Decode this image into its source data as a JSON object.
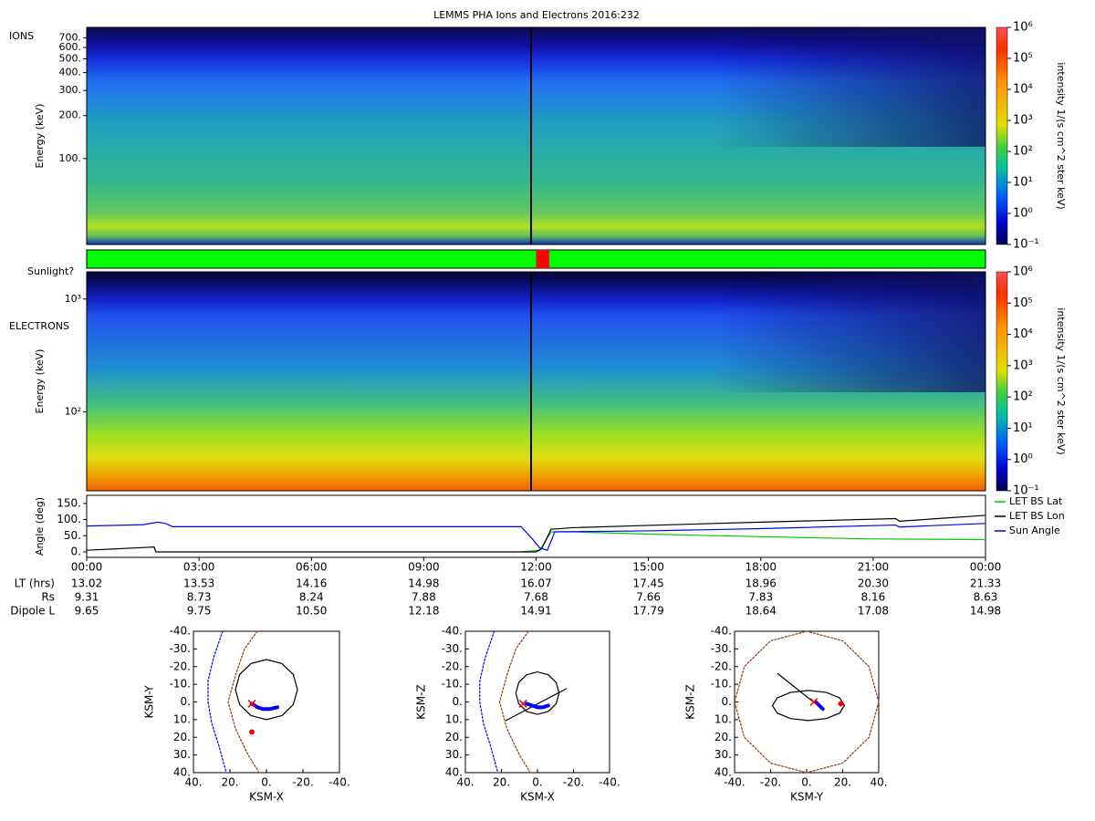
{
  "title": "LEMMS PHA Ions and Electrons  2016:232",
  "ephemeris": {
    "rows": [
      {
        "label": "LT (hrs)",
        "values": [
          "13.02",
          "13.53",
          "14.16",
          "14.98",
          "16.07",
          "17.45",
          "18.96",
          "20.30",
          "21.33"
        ]
      },
      {
        "label": "Rs",
        "values": [
          "9.31",
          "8.73",
          "8.24",
          "7.88",
          "7.68",
          "7.66",
          "7.83",
          "8.16",
          "8.63"
        ]
      },
      {
        "label": "Dipole L",
        "values": [
          "9.65",
          "9.75",
          "10.50",
          "12.18",
          "14.91",
          "17.79",
          "18.64",
          "17.08",
          "14.98"
        ]
      }
    ]
  },
  "chart_data": [
    {
      "type": "heatmap",
      "label": "IONS",
      "y_label": "Energy (keV)",
      "log_y": true,
      "ylim": [
        25,
        830
      ],
      "yticks": [
        {
          "value": 100,
          "label": "100."
        },
        {
          "value": 200,
          "label": "200."
        },
        {
          "value": 300,
          "label": "300."
        },
        {
          "value": 400,
          "label": "400."
        },
        {
          "value": 500,
          "label": "500."
        },
        {
          "value": 600,
          "label": "600."
        },
        {
          "value": 700,
          "label": "700."
        }
      ],
      "colorbar": {
        "label": "intensity 1/(s cm^2 ster keV)",
        "lim": [
          0.1,
          1000000
        ],
        "ticks": [
          {
            "value": 0.1,
            "label": "10⁻¹"
          },
          {
            "value": 1,
            "label": "10⁰"
          },
          {
            "value": 10,
            "label": "10¹"
          },
          {
            "value": 100,
            "label": "10²"
          },
          {
            "value": 1000,
            "label": "10³"
          },
          {
            "value": 10000,
            "label": "10⁴"
          },
          {
            "value": 100000,
            "label": "10⁵"
          },
          {
            "value": 1000000,
            "label": "10⁶"
          }
        ]
      }
    },
    {
      "type": "timeline",
      "title": "Sunlight?",
      "xlim": [
        0,
        24
      ],
      "color": "#00ff00",
      "shadow": [
        12.0,
        12.35
      ],
      "shadow_color": "#ff0000"
    },
    {
      "type": "heatmap",
      "label": "ELECTRONS",
      "y_label": "Energy (keV)",
      "log_y": true,
      "ylim": [
        20,
        1740
      ],
      "yticks": [
        {
          "value": 100,
          "label": "10²"
        },
        {
          "value": 1000,
          "label": "10³"
        }
      ],
      "colorbar": {
        "label": "intensity 1/(s cm^2 ster keV)",
        "lim": [
          0.1,
          1000000
        ],
        "ticks": [
          {
            "value": 0.1,
            "label": "10⁻¹"
          },
          {
            "value": 1,
            "label": "10⁰"
          },
          {
            "value": 10,
            "label": "10¹"
          },
          {
            "value": 100,
            "label": "10²"
          },
          {
            "value": 1000,
            "label": "10³"
          },
          {
            "value": 10000,
            "label": "10⁴"
          },
          {
            "value": 100000,
            "label": "10⁵"
          },
          {
            "value": 1000000,
            "label": "10⁶"
          }
        ]
      }
    },
    {
      "type": "line",
      "y_label": "Angle (deg)",
      "legend": "right",
      "xlim": [
        0,
        24
      ],
      "ylim": [
        -17,
        175
      ],
      "xticks": [
        {
          "value": 0,
          "label": "00:00"
        },
        {
          "value": 3,
          "label": "03:00"
        },
        {
          "value": 6,
          "label": "06:00"
        },
        {
          "value": 9,
          "label": "09:00"
        },
        {
          "value": 12,
          "label": "12:00"
        },
        {
          "value": 15,
          "label": "15:00"
        },
        {
          "value": 18,
          "label": "18:00"
        },
        {
          "value": 21,
          "label": "21:00"
        },
        {
          "value": 24,
          "label": "00:00"
        }
      ],
      "yticks": [
        {
          "value": 0,
          "label": "0."
        },
        {
          "value": 50,
          "label": "50."
        },
        {
          "value": 100,
          "label": "100."
        },
        {
          "value": 150,
          "label": "150."
        }
      ],
      "series": [
        {
          "name": "LET BS Lat",
          "color": "#00cc00",
          "x": [
            11.6,
            12.1,
            12.4,
            13,
            15,
            18,
            21,
            24
          ],
          "values": [
            0,
            5,
            62,
            62,
            55,
            47,
            40,
            38
          ]
        },
        {
          "name": "LET BS Lon",
          "color": "#000000",
          "x": [
            0,
            1.8,
            1.85,
            11.6,
            12.0,
            12.15,
            12.4,
            13,
            15,
            18,
            21.6,
            21.7,
            24
          ],
          "values": [
            5,
            15,
            0,
            0,
            0,
            10,
            70,
            75,
            82,
            92,
            103,
            95,
            113
          ]
        },
        {
          "name": "Sun Angle",
          "color": "#0000ff",
          "x": [
            0,
            1.5,
            1.9,
            2.1,
            2.3,
            11.6,
            11.9,
            12.1,
            12.3,
            12.5,
            15,
            18,
            21.6,
            21.7,
            24
          ],
          "values": [
            80,
            84,
            92,
            88,
            78,
            78,
            40,
            12,
            5,
            62,
            65,
            72,
            83,
            77,
            88
          ]
        }
      ]
    },
    {
      "type": "orbit",
      "x_label": "KSM-X",
      "y_label": "KSM-Y",
      "xlim": [
        40,
        -40
      ],
      "ylim": [
        40,
        -40
      ],
      "xticks": [
        {
          "value": 40,
          "label": "40."
        },
        {
          "value": 20,
          "label": "20."
        },
        {
          "value": 0,
          "label": "0."
        },
        {
          "value": -20,
          "label": "-20."
        },
        {
          "value": -40,
          "label": "-40."
        }
      ],
      "yticks": [
        {
          "value": -40,
          "label": "-40."
        },
        {
          "value": -30,
          "label": "-30."
        },
        {
          "value": -20,
          "label": "-20."
        },
        {
          "value": -10,
          "label": "-10."
        },
        {
          "value": 0,
          "label": "0."
        },
        {
          "value": 10,
          "label": "10."
        },
        {
          "value": 20,
          "label": "20."
        },
        {
          "value": 30,
          "label": "30."
        },
        {
          "value": 40,
          "label": "40."
        }
      ],
      "series": [
        {
          "color": "#0000ff",
          "dash": true,
          "x": [
            24,
            29,
            32,
            32,
            30,
            26,
            22
          ],
          "values": [
            -40,
            -25,
            -12,
            0,
            12,
            25,
            40
          ]
        },
        {
          "color": "#8b3a10",
          "dash": true,
          "x": [
            5,
            12,
            17,
            21,
            17,
            10,
            4
          ],
          "values": [
            -40,
            -30,
            -15,
            0,
            15,
            30,
            40
          ]
        },
        {
          "color": "#000000",
          "x": [
            17,
            14.7,
            8.5,
            0,
            -8.5,
            -14.7,
            -17,
            -14.7,
            -8.5,
            0,
            8.5,
            14.7,
            17
          ],
          "values": [
            -7,
            1.5,
            7.7,
            10,
            7.7,
            1.5,
            -7,
            -15.5,
            -21.7,
            -24,
            -21.7,
            -15.5,
            -7
          ]
        },
        {
          "color": "#0000ff",
          "width": 4,
          "x": [
            8,
            5,
            2,
            -2,
            -6
          ],
          "values": [
            1,
            3,
            4,
            4,
            3
          ]
        },
        {
          "color": "#ff0000",
          "mode": "cross",
          "x": [
            8
          ],
          "values": [
            1
          ]
        },
        {
          "color": "#ff0000",
          "mode": "markers",
          "x": [
            8
          ],
          "values": [
            17
          ]
        }
      ]
    },
    {
      "type": "orbit",
      "x_label": "KSM-X",
      "y_label": "KSM-Z",
      "xlim": [
        40,
        -40
      ],
      "ylim": [
        40,
        -40
      ],
      "xticks": [
        {
          "value": 40,
          "label": "40."
        },
        {
          "value": 20,
          "label": "20."
        },
        {
          "value": 0,
          "label": "0."
        },
        {
          "value": -20,
          "label": "-20."
        },
        {
          "value": -40,
          "label": "-40."
        }
      ],
      "yticks": [
        {
          "value": -40,
          "label": "-40."
        },
        {
          "value": -30,
          "label": "-30."
        },
        {
          "value": -20,
          "label": "-20."
        },
        {
          "value": -10,
          "label": "-10."
        },
        {
          "value": 0,
          "label": "0."
        },
        {
          "value": 10,
          "label": "10."
        },
        {
          "value": 20,
          "label": "20."
        },
        {
          "value": 30,
          "label": "30."
        },
        {
          "value": 40,
          "label": "40."
        }
      ],
      "series": [
        {
          "color": "#0000ff",
          "dash": true,
          "x": [
            24,
            29,
            32,
            32,
            30,
            26,
            22
          ],
          "values": [
            -40,
            -25,
            -12,
            0,
            12,
            25,
            40
          ]
        },
        {
          "color": "#8b3a10",
          "dash": true,
          "x": [
            5,
            12,
            17,
            21,
            17,
            10,
            4
          ],
          "values": [
            -40,
            -30,
            -15,
            0,
            15,
            30,
            40
          ]
        },
        {
          "color": "#000000",
          "x": [
            12,
            10.4,
            6,
            0,
            -6,
            -10.4,
            -12,
            -10.4,
            -6,
            0,
            6,
            10.4,
            12
          ],
          "values": [
            -5,
            1,
            5.4,
            7,
            5.4,
            1,
            -5,
            -11,
            -15.4,
            -17,
            -15.4,
            -11,
            -5
          ]
        },
        {
          "color": "#000000",
          "x": [
            17.5,
            -16
          ],
          "values": [
            10.5,
            -7.5
          ]
        },
        {
          "color": "#0000ff",
          "width": 4,
          "x": [
            6,
            3,
            0,
            -3,
            -6
          ],
          "values": [
            1,
            2,
            3,
            3,
            2
          ]
        },
        {
          "color": "#ff0000",
          "mode": "cross",
          "x": [
            8
          ],
          "values": [
            1
          ]
        }
      ]
    },
    {
      "type": "orbit",
      "x_label": "KSM-Y",
      "y_label": "KSM-Z",
      "xlim": [
        -40,
        40
      ],
      "ylim": [
        40,
        -40
      ],
      "xticks": [
        {
          "value": -40,
          "label": "-40."
        },
        {
          "value": -20,
          "label": "-20."
        },
        {
          "value": 0,
          "label": "0."
        },
        {
          "value": 20,
          "label": "20."
        },
        {
          "value": 40,
          "label": "40."
        }
      ],
      "yticks": [
        {
          "value": -40,
          "label": "-40."
        },
        {
          "value": -30,
          "label": "-30."
        },
        {
          "value": -20,
          "label": "-20."
        },
        {
          "value": -10,
          "label": "-10."
        },
        {
          "value": 0,
          "label": "0."
        },
        {
          "value": 10,
          "label": "10."
        },
        {
          "value": 20,
          "label": "20."
        },
        {
          "value": 30,
          "label": "30."
        },
        {
          "value": 40,
          "label": "40."
        }
      ],
      "series": [
        {
          "color": "#8b3a10",
          "dash": true,
          "x": [
            40,
            34.6,
            20,
            0,
            -20,
            -34.6,
            -40,
            -34.6,
            -20,
            0,
            20,
            34.6,
            40
          ],
          "values": [
            0,
            20,
            34.6,
            40,
            34.6,
            20,
            0,
            -20,
            -34.6,
            -40,
            -34.6,
            -20,
            0
          ]
        },
        {
          "color": "#000000",
          "x": [
            21,
            18.3,
            11,
            1,
            -9,
            -16.3,
            -19,
            -16.3,
            -9,
            1,
            11,
            18.3,
            21
          ],
          "values": [
            2,
            6.3,
            9.4,
            10.5,
            9.4,
            6.3,
            2,
            -2.3,
            -5.4,
            -6.5,
            -5.4,
            -2.3,
            2
          ]
        },
        {
          "color": "#000000",
          "x": [
            -16,
            5
          ],
          "values": [
            -16,
            1
          ]
        },
        {
          "color": "#0000ff",
          "width": 4,
          "x": [
            5,
            7,
            9
          ],
          "values": [
            0,
            2,
            4
          ]
        },
        {
          "color": "#ff0000",
          "mode": "cross",
          "x": [
            4
          ],
          "values": [
            0
          ]
        },
        {
          "color": "#ff0000",
          "mode": "markers",
          "x": [
            19
          ],
          "values": [
            1
          ]
        }
      ]
    }
  ]
}
